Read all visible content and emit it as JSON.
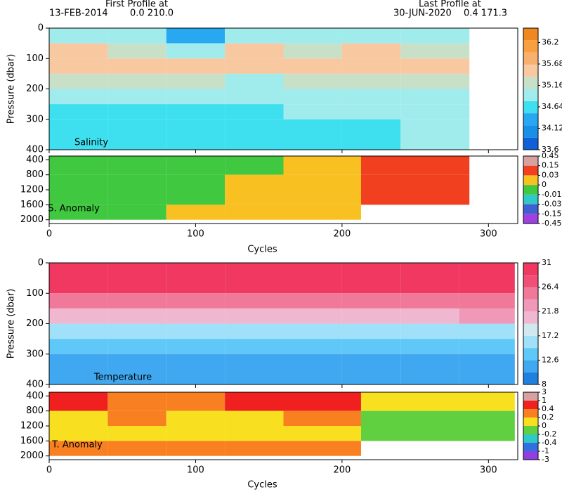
{
  "header": {
    "first_label": "First Profile at",
    "first_date": "13-FEB-2014",
    "first_pos": "0.0 210.0",
    "last_label": "Last Profile at",
    "last_date": "30-JUN-2020",
    "last_pos": "0.4 171.3"
  },
  "chart_data": [
    {
      "type": "heatmap",
      "panel_label": "Salinity",
      "ylabel": "Pressure (dbar)",
      "xlim": [
        0,
        320
      ],
      "xticks": [
        0,
        100,
        200,
        300
      ],
      "ylim": [
        0,
        400
      ],
      "yticks": [
        0,
        100,
        200,
        300,
        400
      ],
      "x": [
        0,
        40,
        80,
        120,
        160,
        200,
        240,
        287
      ],
      "y": [
        0,
        50,
        100,
        150,
        200,
        250,
        300,
        400
      ],
      "z": [
        [
          35.0,
          34.9,
          34.3,
          35.0,
          35.0,
          35.0,
          35.0
        ],
        [
          35.4,
          35.3,
          34.9,
          35.4,
          35.3,
          35.4,
          35.3
        ],
        [
          35.5,
          35.4,
          35.5,
          35.5,
          35.4,
          35.5,
          35.5
        ],
        [
          35.1,
          35.1,
          35.2,
          35.0,
          35.1,
          35.2,
          35.2
        ],
        [
          34.8,
          34.8,
          34.8,
          34.8,
          34.9,
          34.9,
          35.0
        ],
        [
          34.7,
          34.7,
          34.7,
          34.7,
          34.8,
          34.8,
          34.8
        ],
        [
          34.7,
          34.7,
          34.7,
          34.7,
          34.7,
          34.7,
          34.8
        ]
      ],
      "colorbar": {
        "scale": "linear",
        "lim": [
          33.6,
          36.55
        ],
        "ticks": [
          33.6,
          34.12,
          34.64,
          35.16,
          35.68,
          36.2
        ],
        "colors": [
          "#1060d8",
          "#1890e8",
          "#28a8f0",
          "#3ee0f0",
          "#a0ecec",
          "#c8e0c8",
          "#f8c8a0",
          "#f8b070",
          "#f8a040",
          "#f08820"
        ]
      }
    },
    {
      "type": "heatmap",
      "panel_label": "S. Anomaly",
      "xlabel": "Cycles",
      "xlim": [
        0,
        320
      ],
      "xticks": [
        0,
        100,
        200,
        300
      ],
      "ylim": [
        300,
        2100
      ],
      "yticks": [
        400,
        800,
        1200,
        1600,
        2000
      ],
      "x": [
        0,
        40,
        80,
        120,
        160,
        213,
        287
      ],
      "y": [
        300,
        800,
        1200,
        1600,
        2000
      ],
      "z": [
        [
          -0.005,
          -0.005,
          -0.005,
          -0.005,
          0.02,
          0.08
        ],
        [
          -0.005,
          -0.005,
          -0.005,
          0.01,
          0.02,
          0.08
        ],
        [
          -0.005,
          -0.005,
          -0.005,
          0.01,
          0.02,
          0.08
        ],
        [
          -0.005,
          -0.005,
          0.01,
          0.01,
          0.02,
          null
        ]
      ],
      "colorbar": {
        "scale": "index",
        "ticks": [
          0.45,
          0.15,
          0.03,
          0,
          -0.01,
          -0.03,
          -0.15,
          -0.45
        ],
        "colors": [
          "#d8a0a0",
          "#f04020",
          "#f8c020",
          "#40c840",
          "#30c8c8",
          "#4060d0",
          "#a040e0"
        ]
      }
    },
    {
      "type": "heatmap",
      "panel_label": "Temperature",
      "ylabel": "Pressure (dbar)",
      "xlim": [
        0,
        320
      ],
      "xticks": [
        0,
        100,
        200,
        300
      ],
      "ylim": [
        0,
        400
      ],
      "yticks": [
        0,
        100,
        200,
        300,
        400
      ],
      "x": [
        0,
        40,
        80,
        120,
        160,
        200,
        240,
        280,
        318
      ],
      "y": [
        0,
        100,
        150,
        200,
        250,
        300,
        400
      ],
      "z": [
        [
          29,
          29,
          29,
          29,
          29,
          29,
          29,
          29
        ],
        [
          25,
          25,
          26,
          25,
          25,
          25,
          25,
          26
        ],
        [
          20,
          20,
          21,
          20,
          20,
          20,
          21,
          22
        ],
        [
          16,
          16,
          17,
          16,
          16,
          16,
          17,
          17
        ],
        [
          13,
          13,
          13,
          13,
          13,
          13,
          14,
          14
        ],
        [
          11,
          11,
          11,
          11,
          11,
          11,
          11,
          11
        ]
      ],
      "colorbar": {
        "scale": "linear",
        "lim": [
          8,
          31
        ],
        "ticks": [
          8,
          12.6,
          17.2,
          21.8,
          26.4,
          31
        ],
        "colors": [
          "#2080e0",
          "#40a8f0",
          "#60c8f8",
          "#a0e0f8",
          "#d0e8f0",
          "#f0b8d0",
          "#f098b8",
          "#f07898",
          "#f05078",
          "#f03860"
        ]
      }
    },
    {
      "type": "heatmap",
      "panel_label": "T. Anomaly",
      "xlabel": "Cycles",
      "xlim": [
        0,
        320
      ],
      "xticks": [
        0,
        100,
        200,
        300
      ],
      "ylim": [
        300,
        2100
      ],
      "yticks": [
        400,
        800,
        1200,
        1600,
        2000
      ],
      "x": [
        0,
        40,
        80,
        120,
        160,
        213,
        318
      ],
      "y": [
        300,
        800,
        1200,
        1600,
        2000
      ],
      "z": [
        [
          0.5,
          0.3,
          0.3,
          0.5,
          0.5,
          0.1
        ],
        [
          0.1,
          0.3,
          0.1,
          0.1,
          0.3,
          -0.1
        ],
        [
          0.1,
          0.1,
          0.1,
          0.1,
          0.1,
          -0.1
        ],
        [
          0.3,
          0.3,
          0.3,
          0.3,
          0.3,
          null
        ]
      ],
      "colorbar": {
        "scale": "index",
        "ticks": [
          3,
          1,
          0.4,
          0.2,
          0,
          -0.2,
          -0.4,
          -1,
          -3
        ],
        "colors": [
          "#d8a0a0",
          "#f02020",
          "#f88020",
          "#f8e020",
          "#60d040",
          "#30c8c8",
          "#3070e0",
          "#9040e0"
        ]
      }
    }
  ]
}
